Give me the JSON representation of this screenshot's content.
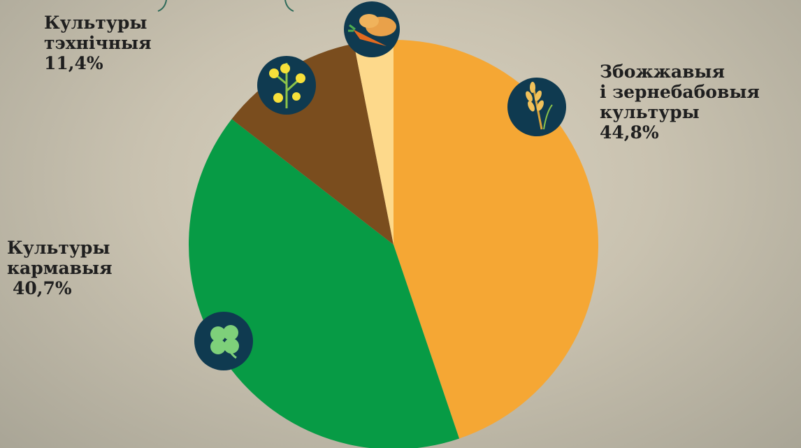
{
  "chart_data": {
    "type": "pie",
    "categories": [
      "Збожжавыя\nі зернебабовыя\nкультуры",
      "Культуры\nкармавыя",
      "Культуры\nтэхнічныя",
      null
    ],
    "values": [
      44.8,
      40.7,
      11.4,
      3.1
    ],
    "value_labels": [
      "44,8%",
      "40,7%",
      "11,4%",
      null
    ],
    "colors": [
      "#f5a734",
      "#079b45",
      "#7a4d1e",
      "#fdd98b"
    ]
  }
}
